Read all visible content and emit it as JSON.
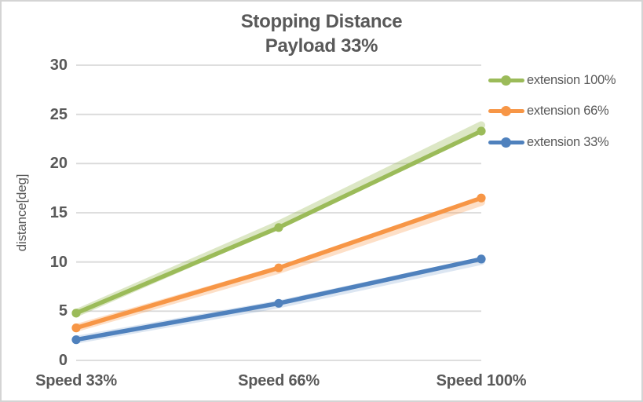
{
  "frame": {
    "background": "#FFFFFF",
    "border_color": "#D4D4D4"
  },
  "chart_data": {
    "type": "line",
    "title_lines": [
      "Stopping Distance",
      "Payload 33%"
    ],
    "title": "Stopping Distance Payload 33%",
    "ylabel": "distance[deg]",
    "xlabel": "",
    "categories": [
      "Speed 33%",
      "Speed 66%",
      "Speed 100%"
    ],
    "y_ticks": [
      0,
      5,
      10,
      15,
      20,
      25,
      30
    ],
    "ylim": [
      0,
      30
    ],
    "grid": "horizontal",
    "gridline_color": "#D9D9D9",
    "text_color": "#595959",
    "legend_position": "right",
    "legend_labels": [
      "extension 100%",
      "extension 66%",
      "extension 33%"
    ],
    "series": [
      {
        "name": "extension 100%",
        "color": "#9BBB59",
        "values": [
          4.8,
          13.5,
          23.3
        ],
        "shadow_values": [
          4.8,
          13.8,
          23.9
        ],
        "shadow_opacity": 0.35
      },
      {
        "name": "extension 66%",
        "color": "#F79646",
        "values": [
          3.3,
          9.4,
          16.5
        ],
        "shadow_values": [
          3.3,
          9.2,
          16.1
        ],
        "shadow_opacity": 0.3
      },
      {
        "name": "extension 33%",
        "color": "#4F81BD",
        "values": [
          2.1,
          5.8,
          10.3
        ],
        "shadow_values": [
          2.1,
          5.7,
          10.1
        ],
        "shadow_opacity": 0.2
      }
    ]
  }
}
